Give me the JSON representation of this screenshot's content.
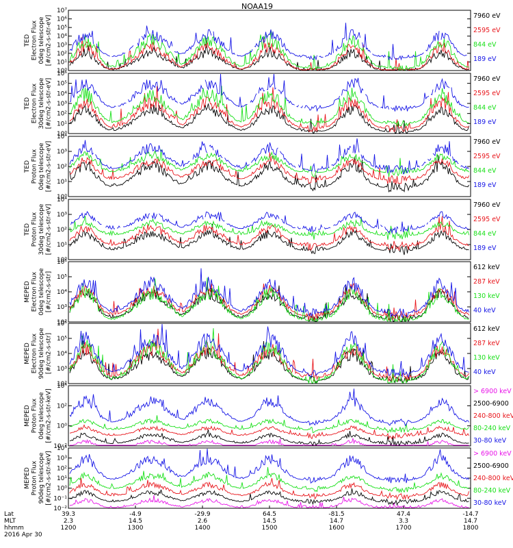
{
  "title": "NOAA19",
  "colors": {
    "black": "#000000",
    "red": "#e8141a",
    "green": "#18e018",
    "blue": "#1414e6",
    "magenta": "#e814e8"
  },
  "panels": [
    {
      "instrument": "TED",
      "ylabel": [
        "Electron Flux",
        "0deg telescope",
        "[#/cm2-s-str-eV]"
      ],
      "yticks": [
        "10⁰",
        "10¹",
        "10²",
        "10³",
        "10⁴",
        "10⁵",
        "10⁶",
        "10⁷"
      ],
      "legend": [
        {
          "label": "7960 eV",
          "color": "black"
        },
        {
          "label": "2595 eV",
          "color": "red"
        },
        {
          "label": "844 eV",
          "color": "green"
        },
        {
          "label": "189 eV",
          "color": "blue"
        }
      ]
    },
    {
      "instrument": "TED",
      "ylabel": [
        "Electron Flux",
        "30deg telescope",
        "[#/cm2-s-str-eV]"
      ],
      "yticks": [
        "10⁰",
        "10¹",
        "10²",
        "10³",
        "10⁴",
        "10⁵",
        "10⁶"
      ],
      "legend": [
        {
          "label": "7960 eV",
          "color": "black"
        },
        {
          "label": "2595 eV",
          "color": "red"
        },
        {
          "label": "844 eV",
          "color": "green"
        },
        {
          "label": "189 eV",
          "color": "blue"
        }
      ]
    },
    {
      "instrument": "TED",
      "ylabel": [
        "Proton Flux",
        "0deg telescope",
        "[#/cm2-s-str-eV]"
      ],
      "yticks": [
        "10⁰",
        "10¹",
        "10²",
        "10³",
        "10⁴"
      ],
      "legend": [
        {
          "label": "7960 eV",
          "color": "black"
        },
        {
          "label": "2595 eV",
          "color": "red"
        },
        {
          "label": "844 eV",
          "color": "green"
        },
        {
          "label": "189 eV",
          "color": "blue"
        }
      ]
    },
    {
      "instrument": "TED",
      "ylabel": [
        "Proton Flux",
        "30deg telescope",
        "[#/cm2-s-str-eV]"
      ],
      "yticks": [
        "10⁰",
        "10¹",
        "10²",
        "10³",
        "10⁴"
      ],
      "legend": [
        {
          "label": "7960 eV",
          "color": "black"
        },
        {
          "label": "2595 eV",
          "color": "red"
        },
        {
          "label": "844 eV",
          "color": "green"
        },
        {
          "label": "189 eV",
          "color": "blue"
        }
      ]
    },
    {
      "instrument": "MEPED",
      "ylabel": [
        "Electron Flux",
        "0deg telescope",
        "[#/cm2-s-str]"
      ],
      "yticks": [
        "10²",
        "10³",
        "10⁴",
        "10⁵",
        "10⁶"
      ],
      "legend": [
        {
          "label": "612 keV",
          "color": "black"
        },
        {
          "label": "287 keV",
          "color": "red"
        },
        {
          "label": "130 keV",
          "color": "green"
        },
        {
          "label": "40 keV",
          "color": "blue"
        }
      ]
    },
    {
      "instrument": "MEPED",
      "ylabel": [
        "Electron Flux",
        "90deg telescope",
        "[#/cm2-s-str]"
      ],
      "yticks": [
        "10²",
        "10³",
        "10⁴",
        "10⁵",
        "10⁶"
      ],
      "legend": [
        {
          "label": "612 keV",
          "color": "black"
        },
        {
          "label": "287 keV",
          "color": "red"
        },
        {
          "label": "130 keV",
          "color": "green"
        },
        {
          "label": "40 keV",
          "color": "blue"
        }
      ]
    },
    {
      "instrument": "MEPED",
      "ylabel": [
        "Proton Flux",
        "0deg telescope",
        "[#/cm2-s-str-keV]"
      ],
      "yticks": [
        "10⁻²",
        "10⁰",
        "10²",
        "10⁴"
      ],
      "legend": [
        {
          "label": "> 6900 keV",
          "color": "magenta"
        },
        {
          "label": "2500-6900",
          "color": "black"
        },
        {
          "label": "240-800 keV",
          "color": "red"
        },
        {
          "label": "80-240 keV",
          "color": "green"
        },
        {
          "label": "30-80 keV",
          "color": "blue"
        }
      ]
    },
    {
      "instrument": "MEPED",
      "ylabel": [
        "Proton Flux",
        "90deg telescope",
        "[#/cm2-s-str-keV]"
      ],
      "yticks": [
        "10⁻²",
        "10⁻¹",
        "10⁰",
        "10¹",
        "10²",
        "10³",
        "10⁴"
      ],
      "legend": [
        {
          "label": "> 6900 keV",
          "color": "magenta"
        },
        {
          "label": "2500-6900",
          "color": "black"
        },
        {
          "label": "240-800 keV",
          "color": "red"
        },
        {
          "label": "80-240 keV",
          "color": "green"
        },
        {
          "label": "30-80 keV",
          "color": "blue"
        }
      ]
    }
  ],
  "xaxis": {
    "row_labels": [
      "Lat",
      "MLT",
      "hhmm"
    ],
    "date": "2016 Apr 30",
    "ticks": [
      {
        "lat": "39.3",
        "mlt": "2.3",
        "hhmm": "1200"
      },
      {
        "lat": "-4.9",
        "mlt": "14.5",
        "hhmm": "1300"
      },
      {
        "lat": "-29.9",
        "mlt": "2.6",
        "hhmm": "1400"
      },
      {
        "lat": "64.5",
        "mlt": "14.5",
        "hhmm": "1500"
      },
      {
        "lat": "-81.5",
        "mlt": "14.7",
        "hhmm": "1600"
      },
      {
        "lat": "47.4",
        "mlt": "3.3",
        "hhmm": "1700"
      },
      {
        "lat": "-14.7",
        "mlt": "14.7",
        "hhmm": "1800"
      }
    ]
  },
  "chart_data": {
    "type": "line",
    "title": "NOAA19",
    "x_time_start": "1200",
    "x_time_end": "1800",
    "panels": [
      {
        "name": "TED Electron Flux 0deg telescope",
        "ylim_log10": [
          0,
          7
        ],
        "channels": [
          "7960 eV",
          "2595 eV",
          "844 eV",
          "189 eV"
        ],
        "background_log10": [
          0,
          0,
          0.3,
          1.5
        ],
        "peak_log10": [
          2.6,
          3.4,
          4.3,
          4.8
        ]
      },
      {
        "name": "TED Electron Flux 30deg telescope",
        "ylim_log10": [
          0,
          6
        ],
        "channels": [
          "7960 eV",
          "2595 eV",
          "844 eV",
          "189 eV"
        ],
        "background_log10": [
          0.2,
          0.5,
          1.0,
          2.5
        ],
        "peak_log10": [
          3.0,
          3.8,
          4.6,
          5.6
        ]
      },
      {
        "name": "TED Proton Flux 0deg telescope",
        "ylim_log10": [
          0,
          4
        ],
        "channels": [
          "7960 eV",
          "2595 eV",
          "844 eV",
          "189 eV"
        ],
        "background_log10": [
          0.6,
          1.1,
          1.6,
          1.8
        ],
        "peak_log10": [
          2.4,
          2.7,
          3.0,
          3.6
        ]
      },
      {
        "name": "TED Proton Flux 30deg telescope",
        "ylim_log10": [
          0,
          4
        ],
        "channels": [
          "7960 eV",
          "2595 eV",
          "844 eV",
          "189 eV"
        ],
        "background_log10": [
          0.6,
          0.9,
          1.6,
          2.0
        ],
        "peak_log10": [
          2.0,
          2.4,
          2.6,
          3.2
        ]
      },
      {
        "name": "MEPED Electron Flux 0deg telescope",
        "ylim_log10": [
          2,
          6
        ],
        "channels": [
          "612 keV",
          "287 keV",
          "130 keV",
          "40 keV"
        ],
        "background_log10": [
          2.2,
          2.4,
          2.1,
          2.6
        ],
        "peak_log10": [
          4.3,
          4.6,
          4.4,
          5.0
        ]
      },
      {
        "name": "MEPED Electron Flux 90deg telescope",
        "ylim_log10": [
          2,
          6
        ],
        "channels": [
          "612 keV",
          "287 keV",
          "130 keV",
          "40 keV"
        ],
        "background_log10": [
          2.2,
          2.4,
          2.2,
          2.7
        ],
        "peak_log10": [
          4.4,
          4.8,
          5.0,
          5.5
        ]
      },
      {
        "name": "MEPED Proton Flux 0deg telescope",
        "ylim_log10": [
          -2,
          4
        ],
        "channels": [
          "> 6900 keV",
          "2500-6900",
          "240-800 keV",
          "80-240 keV",
          "30-80 keV"
        ],
        "background_log10": [
          -2.3,
          -1.8,
          -1.0,
          -0.4,
          0.3
        ],
        "peak_log10": [
          -1.4,
          -0.7,
          0.0,
          0.7,
          3.0
        ]
      },
      {
        "name": "MEPED Proton Flux 90deg telescope",
        "ylim_log10": [
          -2,
          4
        ],
        "channels": [
          "> 6900 keV",
          "2500-6900",
          "240-800 keV",
          "80-240 keV",
          "30-80 keV"
        ],
        "background_log10": [
          -2.0,
          -1.4,
          -0.8,
          -0.1,
          0.8
        ],
        "peak_log10": [
          -1.0,
          -0.2,
          0.6,
          1.6,
          3.4
        ]
      }
    ]
  }
}
